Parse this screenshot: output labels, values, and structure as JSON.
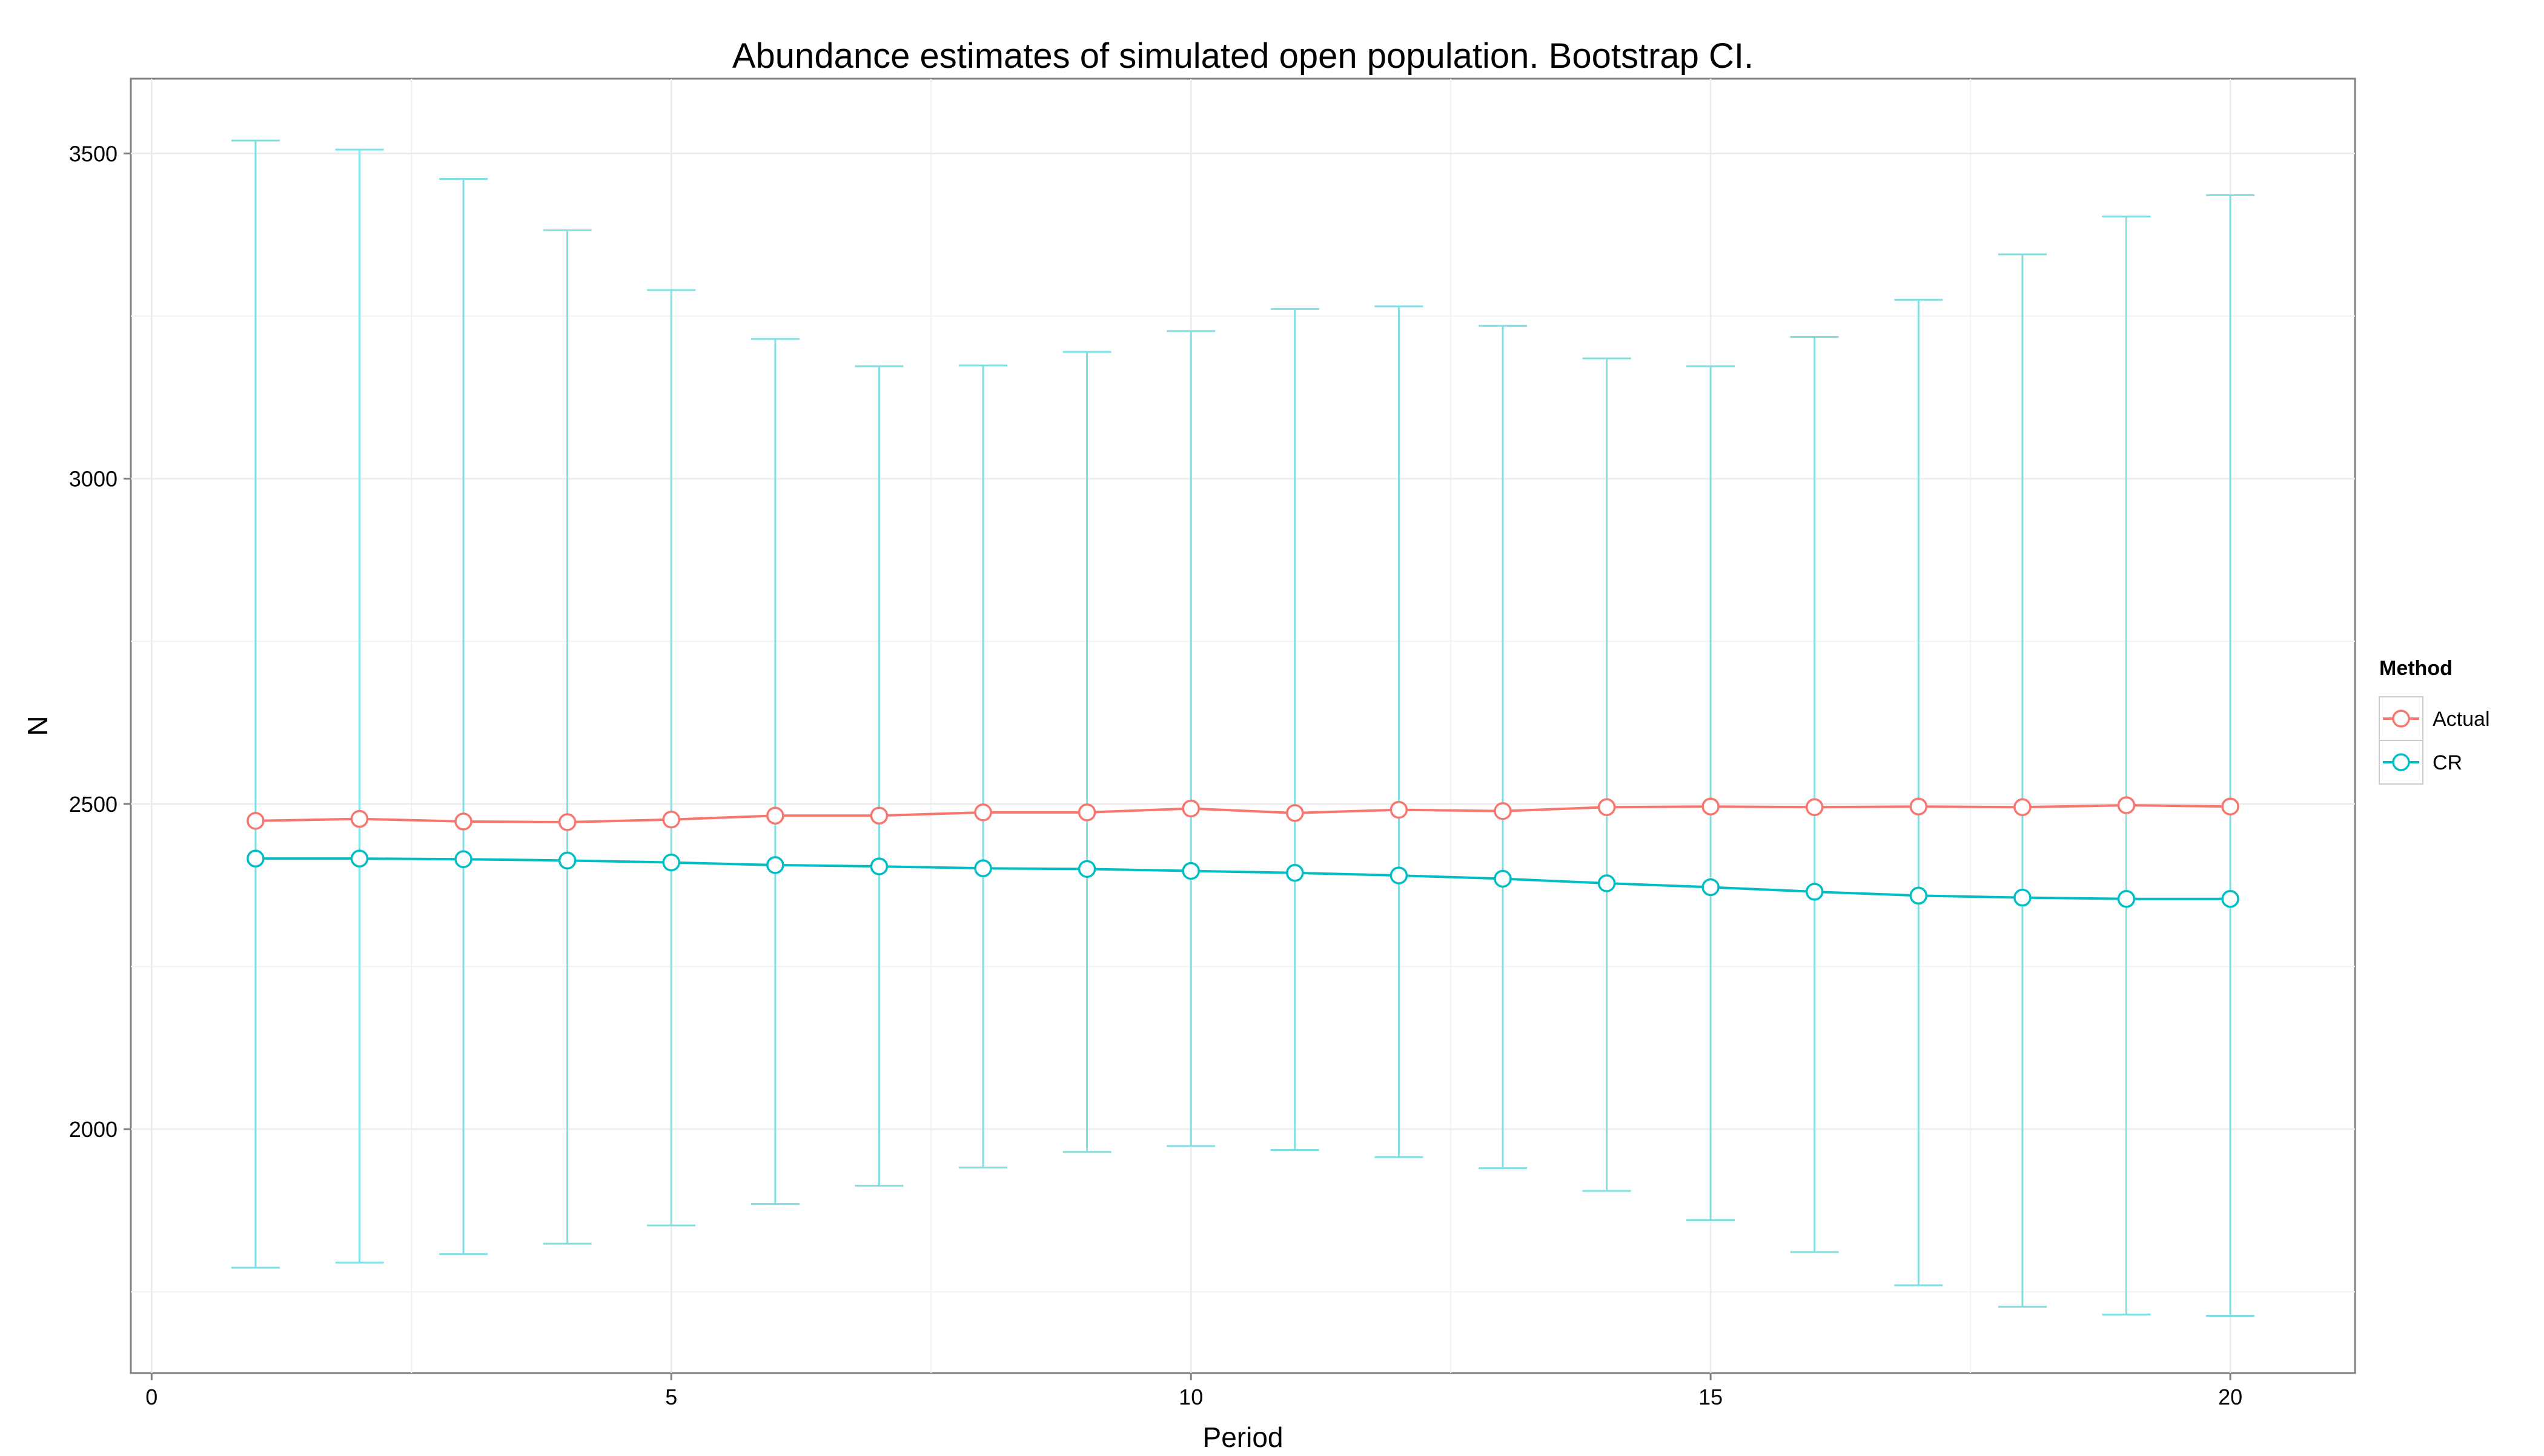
{
  "chart_data": {
    "type": "line",
    "title": "Abundance estimates of simulated open population. Bootstrap CI.",
    "xlabel": "Period",
    "ylabel": "N",
    "xlim": [
      -0.2,
      21.2
    ],
    "ylim": [
      1625,
      3615
    ],
    "xticks": [
      0,
      5,
      10,
      15,
      20
    ],
    "yticks": [
      2000,
      2500,
      3000,
      3500
    ],
    "grid": true,
    "legend": {
      "title": "Method",
      "position": "right"
    },
    "x": [
      1,
      2,
      3,
      4,
      5,
      6,
      7,
      8,
      9,
      10,
      11,
      12,
      13,
      14,
      15,
      16,
      17,
      18,
      19,
      20
    ],
    "series": [
      {
        "name": "Actual",
        "color": "#F8766D",
        "values": [
          2474,
          2477,
          2473,
          2472,
          2476,
          2482,
          2482,
          2487,
          2487,
          2493,
          2486,
          2491,
          2489,
          2495,
          2496,
          2495,
          2496,
          2495,
          2498,
          2496
        ]
      },
      {
        "name": "CR",
        "color": "#00BFC4",
        "values": [
          2416,
          2416,
          2415,
          2413,
          2410,
          2406,
          2404,
          2401,
          2400,
          2397,
          2394,
          2390,
          2385,
          2378,
          2372,
          2365,
          2359,
          2356,
          2354,
          2354
        ],
        "ci_lower": [
          1787,
          1795,
          1808,
          1824,
          1852,
          1885,
          1913,
          1941,
          1965,
          1974,
          1968,
          1957,
          1940,
          1905,
          1860,
          1811,
          1760,
          1727,
          1715,
          1713
        ],
        "ci_upper": [
          3520,
          3506,
          3461,
          3382,
          3290,
          3215,
          3173,
          3174,
          3195,
          3227,
          3261,
          3265,
          3235,
          3185,
          3173,
          3218,
          3275,
          3345,
          3403,
          3436
        ]
      }
    ]
  }
}
